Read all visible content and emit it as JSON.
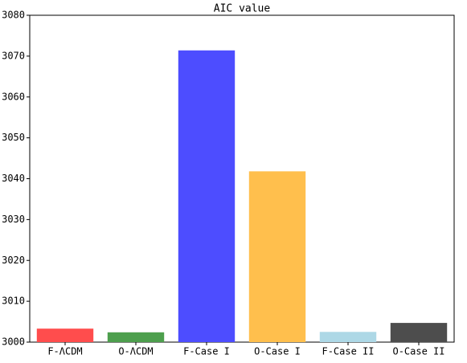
{
  "chart_data": {
    "type": "bar",
    "title": "AIC value",
    "categories": [
      "F-ΛCDM",
      "O-ΛCDM",
      "F-Case I",
      "O-Case I",
      "F-Case II",
      "O-Case II"
    ],
    "values": [
      3003.3,
      3002.4,
      3071.4,
      3041.8,
      3002.5,
      3004.7
    ],
    "colors": [
      "#ff4d4d",
      "#4d9f4d",
      "#4d4dff",
      "#ffbf4d",
      "#add8e6",
      "#4d4d4d"
    ],
    "ylim": [
      3000,
      3080
    ],
    "yticks": [
      3000,
      3010,
      3020,
      3030,
      3040,
      3050,
      3060,
      3070,
      3080
    ]
  }
}
